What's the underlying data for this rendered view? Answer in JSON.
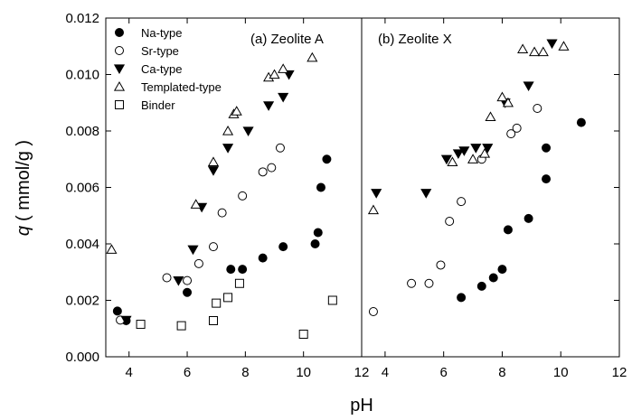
{
  "chart_data": {
    "type": "scatter",
    "ylabel_symbol": "q",
    "ylabel_unit": "( mmol/g )",
    "xlabel": "pH",
    "ylim": [
      0,
      0.012
    ],
    "grid": false,
    "yticks": [
      "0.000",
      "0.002",
      "0.004",
      "0.006",
      "0.008",
      "0.010",
      "0.012"
    ],
    "xticks_left": [
      "4",
      "6",
      "8",
      "10",
      "12"
    ],
    "xticks_right": [
      "4",
      "6",
      "8",
      "10",
      "12"
    ],
    "legend_position": "top-left",
    "legend": [
      {
        "name": "Na-type",
        "marker": "circle-filled"
      },
      {
        "name": "Sr-type",
        "marker": "circle-open"
      },
      {
        "name": "Ca-type",
        "marker": "triangle-down-filled"
      },
      {
        "name": "Templated-type",
        "marker": "triangle-up-open"
      },
      {
        "name": "Binder",
        "marker": "square-open"
      }
    ],
    "panels": [
      {
        "title": "(a) Zeolite A",
        "xlim": [
          3.2,
          12
        ],
        "series": [
          {
            "name": "Na-type",
            "marker": "circle-filled",
            "points": [
              [
                3.6,
                0.00162
              ],
              [
                3.9,
                0.00128
              ],
              [
                6.0,
                0.00228
              ],
              [
                7.5,
                0.0031
              ],
              [
                7.9,
                0.0031
              ],
              [
                8.6,
                0.0035
              ],
              [
                9.3,
                0.0039
              ],
              [
                10.4,
                0.004
              ],
              [
                10.5,
                0.0044
              ],
              [
                10.6,
                0.006
              ],
              [
                10.8,
                0.007
              ]
            ]
          },
          {
            "name": "Sr-type",
            "marker": "circle-open",
            "points": [
              [
                3.7,
                0.0013
              ],
              [
                5.3,
                0.0028
              ],
              [
                6.0,
                0.0027
              ],
              [
                6.4,
                0.0033
              ],
              [
                6.9,
                0.0039
              ],
              [
                7.2,
                0.0051
              ],
              [
                7.9,
                0.0057
              ],
              [
                8.6,
                0.00655
              ],
              [
                8.9,
                0.0067
              ],
              [
                9.2,
                0.0074
              ]
            ]
          },
          {
            "name": "Ca-type",
            "marker": "triangle-down-filled",
            "points": [
              [
                3.9,
                0.0013
              ],
              [
                5.7,
                0.0027
              ],
              [
                6.2,
                0.0038
              ],
              [
                6.5,
                0.0053
              ],
              [
                6.9,
                0.0066
              ],
              [
                7.4,
                0.0074
              ],
              [
                8.1,
                0.008
              ],
              [
                8.8,
                0.0089
              ],
              [
                9.3,
                0.0092
              ],
              [
                9.5,
                0.01
              ]
            ]
          },
          {
            "name": "Templated-type",
            "marker": "triangle-up-open",
            "points": [
              [
                3.4,
                0.0038
              ],
              [
                6.3,
                0.0054
              ],
              [
                6.9,
                0.0069
              ],
              [
                7.4,
                0.008
              ],
              [
                7.6,
                0.0086
              ],
              [
                7.7,
                0.0087
              ],
              [
                8.8,
                0.0099
              ],
              [
                9.0,
                0.01
              ],
              [
                9.3,
                0.0102
              ],
              [
                10.3,
                0.0106
              ]
            ]
          },
          {
            "name": "Binder",
            "marker": "square-open",
            "points": [
              [
                4.4,
                0.00115
              ],
              [
                5.8,
                0.0011
              ],
              [
                6.9,
                0.00128
              ],
              [
                7.0,
                0.0019
              ],
              [
                7.4,
                0.0021
              ],
              [
                7.8,
                0.0026
              ],
              [
                10.0,
                0.0008
              ],
              [
                11.0,
                0.002
              ]
            ]
          }
        ]
      },
      {
        "title": "(b) Zeolite X",
        "xlim": [
          3.2,
          12
        ],
        "series": [
          {
            "name": "Na-type",
            "marker": "circle-filled",
            "points": [
              [
                6.6,
                0.0021
              ],
              [
                7.3,
                0.0025
              ],
              [
                7.7,
                0.0028
              ],
              [
                8.0,
                0.0031
              ],
              [
                8.2,
                0.0045
              ],
              [
                8.9,
                0.0049
              ],
              [
                9.5,
                0.0063
              ],
              [
                9.5,
                0.0074
              ],
              [
                10.7,
                0.0083
              ]
            ]
          },
          {
            "name": "Sr-type",
            "marker": "circle-open",
            "points": [
              [
                3.6,
                0.0016
              ],
              [
                4.9,
                0.0026
              ],
              [
                5.5,
                0.0026
              ],
              [
                5.9,
                0.00325
              ],
              [
                6.2,
                0.0048
              ],
              [
                6.6,
                0.0055
              ],
              [
                7.3,
                0.007
              ],
              [
                8.3,
                0.0079
              ],
              [
                8.5,
                0.0081
              ],
              [
                9.2,
                0.0088
              ]
            ]
          },
          {
            "name": "Ca-type",
            "marker": "triangle-down-filled",
            "points": [
              [
                3.7,
                0.0058
              ],
              [
                5.4,
                0.0058
              ],
              [
                6.1,
                0.007
              ],
              [
                6.5,
                0.0072
              ],
              [
                6.7,
                0.0073
              ],
              [
                7.1,
                0.0074
              ],
              [
                7.5,
                0.0074
              ],
              [
                8.1,
                0.009
              ],
              [
                8.9,
                0.0096
              ],
              [
                9.7,
                0.0111
              ]
            ]
          },
          {
            "name": "Templated-type",
            "marker": "triangle-up-open",
            "points": [
              [
                3.6,
                0.0052
              ],
              [
                6.3,
                0.0069
              ],
              [
                7.0,
                0.007
              ],
              [
                7.4,
                0.0072
              ],
              [
                7.6,
                0.0085
              ],
              [
                8.0,
                0.0092
              ],
              [
                8.2,
                0.009
              ],
              [
                8.7,
                0.0109
              ],
              [
                9.1,
                0.0108
              ],
              [
                9.4,
                0.0108
              ],
              [
                10.1,
                0.011
              ]
            ]
          }
        ]
      }
    ]
  }
}
